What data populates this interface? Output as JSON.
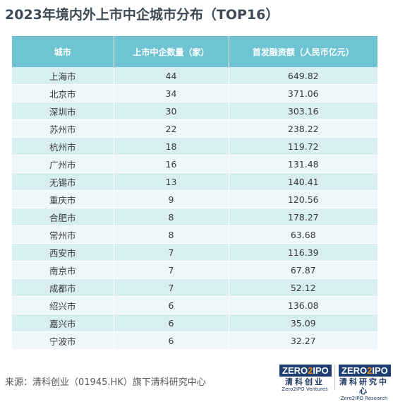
{
  "title": "2023年境内外上市中企城市分布（TOP16）",
  "chart_data": {
    "type": "table",
    "title": "2023年境内外上市中企城市分布（TOP16）",
    "columns": [
      "城市",
      "上市中企数量（家）",
      "首发融资额（人民币亿元）"
    ],
    "rows": [
      [
        "上海市",
        "44",
        "649.82"
      ],
      [
        "北京市",
        "34",
        "371.06"
      ],
      [
        "深圳市",
        "30",
        "303.16"
      ],
      [
        "苏州市",
        "22",
        "238.22"
      ],
      [
        "杭州市",
        "18",
        "119.72"
      ],
      [
        "广州市",
        "16",
        "131.48"
      ],
      [
        "无锡市",
        "13",
        "140.41"
      ],
      [
        "重庆市",
        "9",
        "120.56"
      ],
      [
        "合肥市",
        "8",
        "178.27"
      ],
      [
        "常州市",
        "8",
        "63.68"
      ],
      [
        "西安市",
        "7",
        "116.39"
      ],
      [
        "南京市",
        "7",
        "67.87"
      ],
      [
        "成都市",
        "7",
        "52.12"
      ],
      [
        "绍兴市",
        "6",
        "136.08"
      ],
      [
        "嘉兴市",
        "6",
        "35.09"
      ],
      [
        "宁波市",
        "6",
        "32.27"
      ]
    ]
  },
  "source": "来源：清科创业（01945.HK）旗下清科研究中心",
  "logos": [
    {
      "mark_left": "ZERO",
      "mark_mid": "2",
      "mark_right": "IPO",
      "cn": "清科创业",
      "en": "Zero2IPO Ventures"
    },
    {
      "mark_left": "ZERO",
      "mark_mid": "2",
      "mark_right": "IPO",
      "cn": "清科研究中心",
      "en": "Zero2IPO Research"
    }
  ],
  "colors": {
    "header": "#6ec4d2",
    "row_odd": "#d7eef3",
    "row_even": "#eef8fa",
    "logo_dark": "#1c3d70",
    "logo_accent": "#f08a1c"
  }
}
